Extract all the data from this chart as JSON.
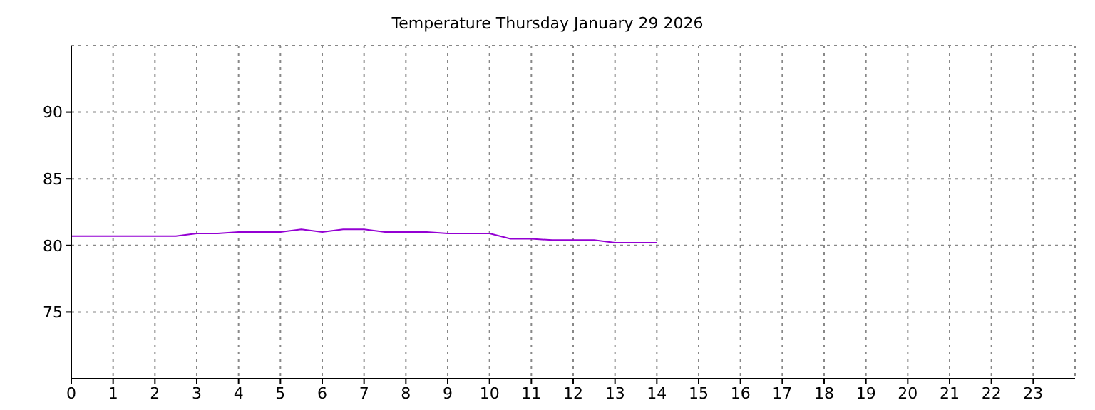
{
  "chart_data": {
    "type": "line",
    "title": "Temperature Thursday January 29 2026",
    "x": [
      0,
      0.5,
      1,
      1.5,
      2,
      2.5,
      3,
      3.5,
      4,
      4.5,
      5,
      5.5,
      6,
      6.5,
      7,
      7.5,
      8,
      8.5,
      9,
      9.5,
      10,
      10.5,
      11,
      11.5,
      12,
      12.5,
      13,
      13.5,
      14
    ],
    "series": [
      {
        "color": "#9400d3",
        "values": [
          80.7,
          80.7,
          80.7,
          80.7,
          80.7,
          80.7,
          80.9,
          80.9,
          81,
          81,
          81,
          81.2,
          81,
          81.2,
          81.2,
          81,
          81,
          81,
          80.9,
          80.9,
          80.9,
          80.5,
          80.5,
          80.4,
          80.4,
          80.4,
          80.2,
          80.2,
          80.2
        ]
      }
    ],
    "xlim": [
      0,
      24
    ],
    "xticks": [
      0,
      1,
      2,
      3,
      4,
      5,
      6,
      7,
      8,
      9,
      10,
      11,
      12,
      13,
      14,
      15,
      16,
      17,
      18,
      19,
      20,
      21,
      22,
      23
    ],
    "ylim": [
      70,
      95
    ],
    "yticks": [
      75,
      80,
      85,
      90
    ],
    "grid": true,
    "legend": false,
    "marker": "none",
    "line_style": "solid"
  }
}
